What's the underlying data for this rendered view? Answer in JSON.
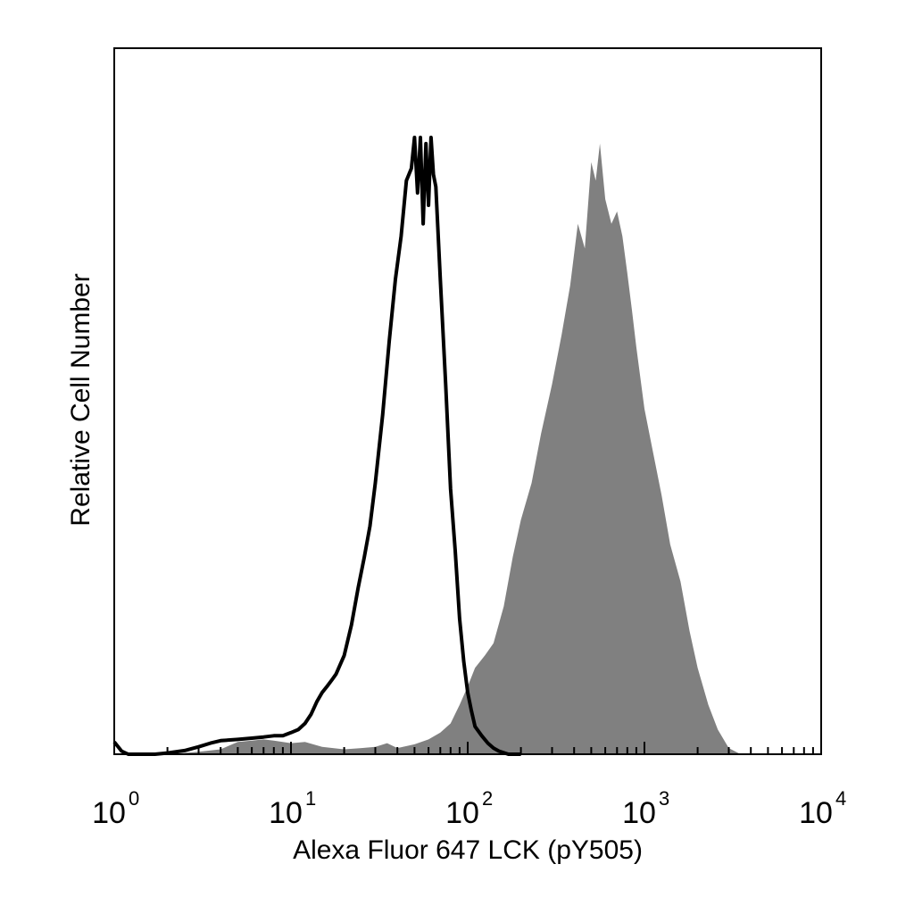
{
  "chart_data": {
    "type": "area",
    "xlabel": "Alexa Fluor 647 LCK (pY505)",
    "ylabel": "Relative Cell Number",
    "xscale": "log",
    "xlim": [
      1,
      10000
    ],
    "ylim": [
      0,
      1
    ],
    "ytick_labels": "none",
    "grid": false,
    "legend": "none",
    "x_ticks": [
      {
        "base": "10",
        "exp": "0",
        "value": 1
      },
      {
        "base": "10",
        "exp": "1",
        "value": 10
      },
      {
        "base": "10",
        "exp": "2",
        "value": 100
      },
      {
        "base": "10",
        "exp": "3",
        "value": 1000
      },
      {
        "base": "10",
        "exp": "4",
        "value": 10000
      }
    ],
    "series": [
      {
        "style": "filled",
        "color": "#808080",
        "x": [
          1,
          2,
          3,
          4,
          5,
          6,
          7,
          8,
          10,
          12,
          15,
          20,
          25,
          30,
          35,
          40,
          50,
          60,
          70,
          80,
          90,
          100,
          110,
          125,
          140,
          160,
          180,
          200,
          230,
          260,
          300,
          340,
          380,
          420,
          460,
          500,
          530,
          560,
          600,
          650,
          700,
          750,
          800,
          850,
          900,
          1000,
          1100,
          1250,
          1400,
          1600,
          1800,
          2000,
          2300,
          2600,
          3000,
          3500,
          4000
        ],
        "y": [
          0.0,
          0.0,
          0.004,
          0.008,
          0.02,
          0.022,
          0.024,
          0.022,
          0.018,
          0.02,
          0.012,
          0.008,
          0.01,
          0.012,
          0.018,
          0.01,
          0.016,
          0.024,
          0.035,
          0.05,
          0.08,
          0.11,
          0.14,
          0.16,
          0.18,
          0.24,
          0.32,
          0.38,
          0.44,
          0.52,
          0.6,
          0.68,
          0.76,
          0.86,
          0.82,
          0.96,
          0.93,
          0.99,
          0.9,
          0.86,
          0.88,
          0.84,
          0.78,
          0.72,
          0.66,
          0.56,
          0.5,
          0.42,
          0.34,
          0.28,
          0.2,
          0.14,
          0.08,
          0.04,
          0.01,
          0.0,
          0.0
        ]
      },
      {
        "style": "outline",
        "color": "#000000",
        "x": [
          1,
          1.1,
          1.2,
          1.4,
          1.7,
          2,
          2.5,
          3,
          3.5,
          4,
          5,
          6,
          7,
          8,
          9,
          10,
          11,
          12,
          13,
          14,
          15,
          16,
          17,
          18,
          20,
          22,
          24,
          26,
          28,
          30,
          33,
          36,
          39,
          42,
          45,
          48,
          50,
          52,
          54,
          56,
          58,
          60,
          62,
          64,
          66,
          70,
          75,
          80,
          85,
          90,
          95,
          100,
          105,
          110,
          120,
          130,
          140,
          150,
          170,
          200
        ],
        "y": [
          0.02,
          0.005,
          0.0,
          0.0,
          0.0,
          0.002,
          0.006,
          0.012,
          0.018,
          0.022,
          0.024,
          0.026,
          0.028,
          0.03,
          0.03,
          0.035,
          0.04,
          0.05,
          0.065,
          0.085,
          0.1,
          0.11,
          0.12,
          0.13,
          0.16,
          0.21,
          0.27,
          0.32,
          0.37,
          0.44,
          0.55,
          0.67,
          0.77,
          0.84,
          0.93,
          0.95,
          1.0,
          0.91,
          1.0,
          0.86,
          0.99,
          0.89,
          1.0,
          0.94,
          0.92,
          0.77,
          0.6,
          0.43,
          0.33,
          0.22,
          0.15,
          0.1,
          0.07,
          0.045,
          0.03,
          0.018,
          0.01,
          0.005,
          0.0,
          0.0
        ]
      }
    ]
  }
}
